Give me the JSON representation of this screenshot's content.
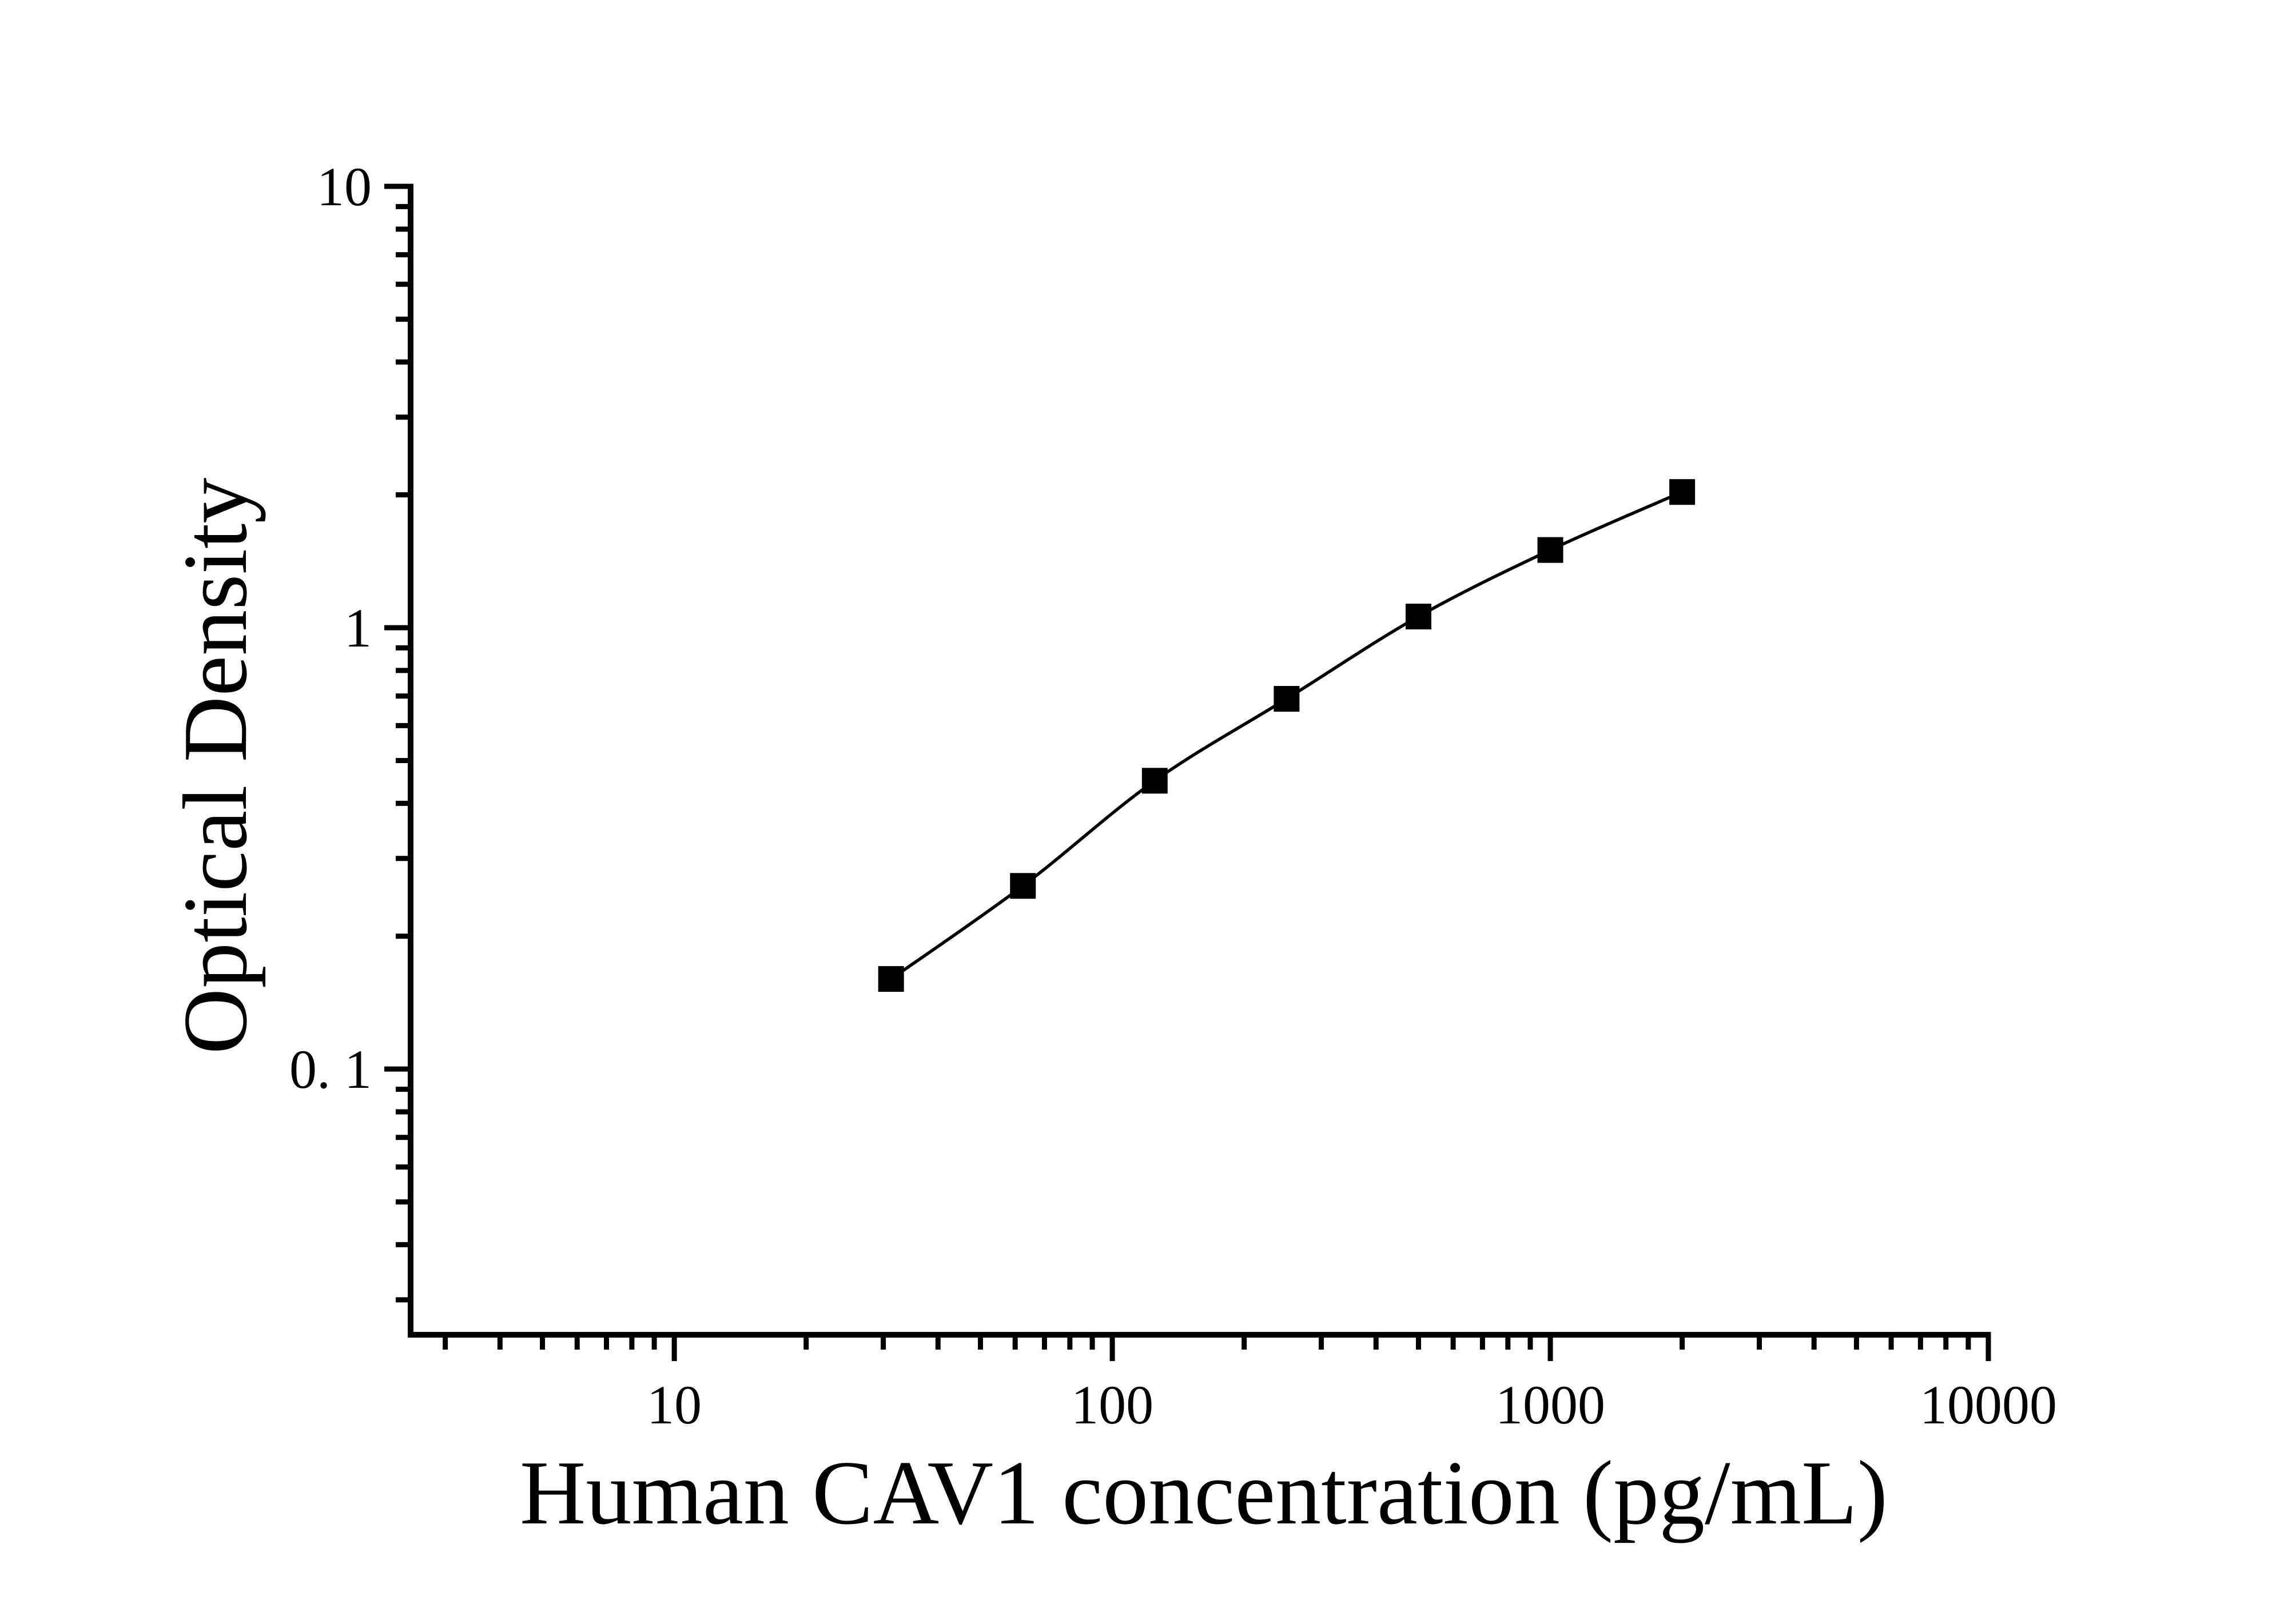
{
  "chart_data": {
    "type": "line",
    "title": "",
    "xlabel": "Human CAV1 concentration (pg/mL)",
    "ylabel": "Optical Density",
    "x_scale": "log",
    "y_scale": "log",
    "xlim": [
      2.5,
      10000
    ],
    "ylim": [
      0.025,
      10
    ],
    "x_major_ticks": [
      10,
      100,
      1000,
      10000
    ],
    "x_tick_labels": [
      "10",
      "100",
      "1000",
      "10000"
    ],
    "y_major_ticks": [
      10,
      1,
      0.1
    ],
    "y_tick_labels": [
      "10",
      "1",
      "0. 1"
    ],
    "grid": false,
    "legend": false,
    "marker": "filled-square",
    "colors": {
      "axis": "#000000",
      "line": "#000000",
      "marker": "#000000",
      "background": "#ffffff"
    },
    "x": [
      31.25,
      62.5,
      125,
      250,
      500,
      1000,
      2000
    ],
    "y": [
      0.16,
      0.26,
      0.45,
      0.69,
      1.06,
      1.5,
      2.03
    ]
  }
}
